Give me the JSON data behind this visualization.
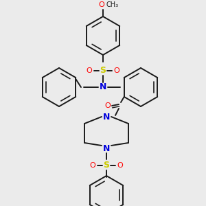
{
  "background_color": "#ebebeb",
  "bond_color": "#1a1a1a",
  "N_color": "#0000dd",
  "O_color": "#ff0000",
  "S_color": "#cccc00",
  "figsize": [
    3.0,
    3.0
  ],
  "dpi": 100,
  "xlim": [
    0,
    300
  ],
  "ylim": [
    0,
    300
  ]
}
